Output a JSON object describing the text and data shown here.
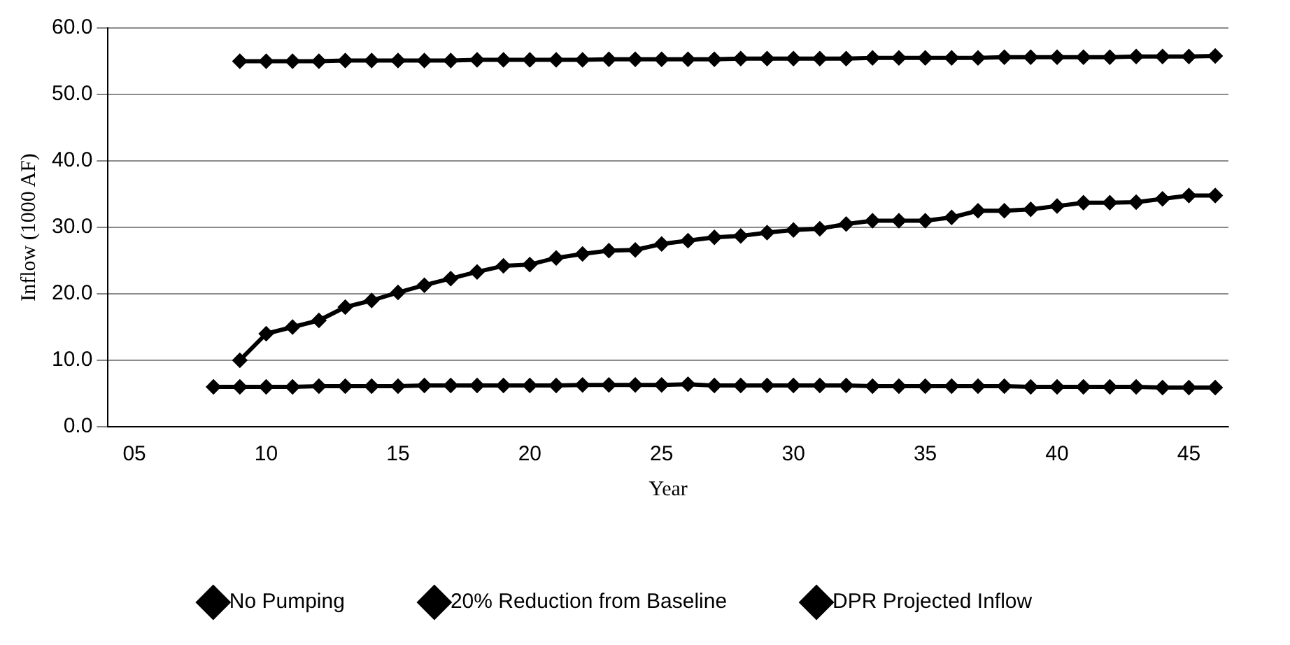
{
  "chart_data": {
    "type": "line",
    "xlabel": "Year",
    "ylabel": "Inflow (1000 AF)",
    "xlim": [
      4,
      46.5
    ],
    "xticks": [
      {
        "value": 5,
        "label": "05"
      },
      10,
      15,
      20,
      25,
      30,
      35,
      40,
      45
    ],
    "ylim": [
      0,
      60
    ],
    "yticks": [
      {
        "value": 0,
        "label": "0.0"
      },
      {
        "value": 10,
        "label": "10.0"
      },
      {
        "value": 20,
        "label": "20.0"
      },
      {
        "value": 30,
        "label": "30.0"
      },
      {
        "value": 40,
        "label": "40.0"
      },
      {
        "value": 50,
        "label": "50.0"
      },
      {
        "value": 60,
        "label": "60.0"
      }
    ],
    "grid": "y",
    "legend": "bottom",
    "marker": "diamond",
    "line_style": "solid",
    "series": [
      {
        "name": "No Pumping",
        "color": "#000000",
        "x": [
          9,
          10,
          11,
          12,
          13,
          14,
          15,
          16,
          17,
          18,
          19,
          20,
          21,
          22,
          23,
          24,
          25,
          26,
          27,
          28,
          29,
          30,
          31,
          32,
          33,
          34,
          35,
          36,
          37,
          38,
          39,
          40,
          41,
          42,
          43,
          44,
          45,
          46
        ],
        "values": [
          55.0,
          55.0,
          55.0,
          55.0,
          55.1,
          55.1,
          55.1,
          55.1,
          55.1,
          55.2,
          55.2,
          55.2,
          55.2,
          55.2,
          55.3,
          55.3,
          55.3,
          55.3,
          55.3,
          55.4,
          55.4,
          55.4,
          55.4,
          55.4,
          55.5,
          55.5,
          55.5,
          55.5,
          55.5,
          55.6,
          55.6,
          55.6,
          55.6,
          55.6,
          55.7,
          55.7,
          55.7,
          55.8
        ]
      },
      {
        "name": "20% Reduction from Baseline",
        "color": "#000000",
        "x": [
          9,
          10,
          11,
          12,
          13,
          14,
          15,
          16,
          17,
          18,
          19,
          20,
          21,
          22,
          23,
          24,
          25,
          26,
          27,
          28,
          29,
          30,
          31,
          32,
          33,
          34,
          35,
          36,
          37,
          38,
          39,
          40,
          41,
          42,
          43,
          44,
          45,
          46
        ],
        "values": [
          10.0,
          14.0,
          15.0,
          16.0,
          18.0,
          19.0,
          20.2,
          21.3,
          22.3,
          23.3,
          24.2,
          24.4,
          25.4,
          26.0,
          26.5,
          26.6,
          27.5,
          28.0,
          28.5,
          28.7,
          29.2,
          29.6,
          29.8,
          30.5,
          31.0,
          31.0,
          31.0,
          31.5,
          32.5,
          32.5,
          32.7,
          33.2,
          33.7,
          33.7,
          33.8,
          34.3,
          34.8,
          34.8
        ]
      },
      {
        "name": "DPR Projected Inflow",
        "color": "#000000",
        "x": [
          8,
          9,
          10,
          11,
          12,
          13,
          14,
          15,
          16,
          17,
          18,
          19,
          20,
          21,
          22,
          23,
          24,
          25,
          26,
          27,
          28,
          29,
          30,
          31,
          32,
          33,
          34,
          35,
          36,
          37,
          38,
          39,
          40,
          41,
          42,
          43,
          44,
          45,
          46
        ],
        "values": [
          6.0,
          6.0,
          6.0,
          6.0,
          6.1,
          6.1,
          6.1,
          6.1,
          6.2,
          6.2,
          6.2,
          6.2,
          6.2,
          6.2,
          6.3,
          6.3,
          6.3,
          6.3,
          6.4,
          6.2,
          6.2,
          6.2,
          6.2,
          6.2,
          6.2,
          6.1,
          6.1,
          6.1,
          6.1,
          6.1,
          6.1,
          6.0,
          6.0,
          6.0,
          6.0,
          6.0,
          5.9,
          5.9,
          5.9
        ]
      }
    ]
  }
}
